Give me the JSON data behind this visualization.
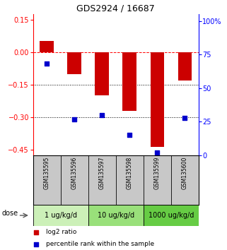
{
  "title": "GDS2924 / 16687",
  "samples": [
    "GSM135595",
    "GSM135596",
    "GSM135597",
    "GSM135598",
    "GSM135599",
    "GSM135600"
  ],
  "log2_ratio": [
    0.05,
    -0.1,
    -0.2,
    -0.27,
    -0.435,
    -0.13
  ],
  "percentile_rank": [
    68,
    27,
    30,
    15,
    2,
    28
  ],
  "ylim_left": [
    -0.475,
    0.175
  ],
  "ylim_right": [
    0,
    105
  ],
  "yticks_left": [
    0.15,
    0,
    -0.15,
    -0.3,
    -0.45
  ],
  "yticks_right": [
    100,
    75,
    50,
    25,
    0
  ],
  "hlines_dotted": [
    -0.15,
    -0.3
  ],
  "hline_dashed": 0,
  "dose_groups": [
    {
      "label": "1 ug/kg/d",
      "color": "#ccf0b8",
      "indices": [
        0,
        1
      ]
    },
    {
      "label": "10 ug/kg/d",
      "color": "#99e07a",
      "indices": [
        2,
        3
      ]
    },
    {
      "label": "1000 ug/kg/d",
      "color": "#66cc44",
      "indices": [
        4,
        5
      ]
    }
  ],
  "bar_color": "#cc0000",
  "scatter_color": "#0000cc",
  "bar_width": 0.5,
  "scatter_size": 18,
  "xticklabel_fontsize": 5.5,
  "title_fontsize": 9,
  "axis_fontsize": 7,
  "legend_fontsize": 6.5,
  "dose_fontsize": 7,
  "legend_items": [
    {
      "color": "#cc0000",
      "label": "log2 ratio"
    },
    {
      "color": "#0000cc",
      "label": "percentile rank within the sample"
    }
  ]
}
